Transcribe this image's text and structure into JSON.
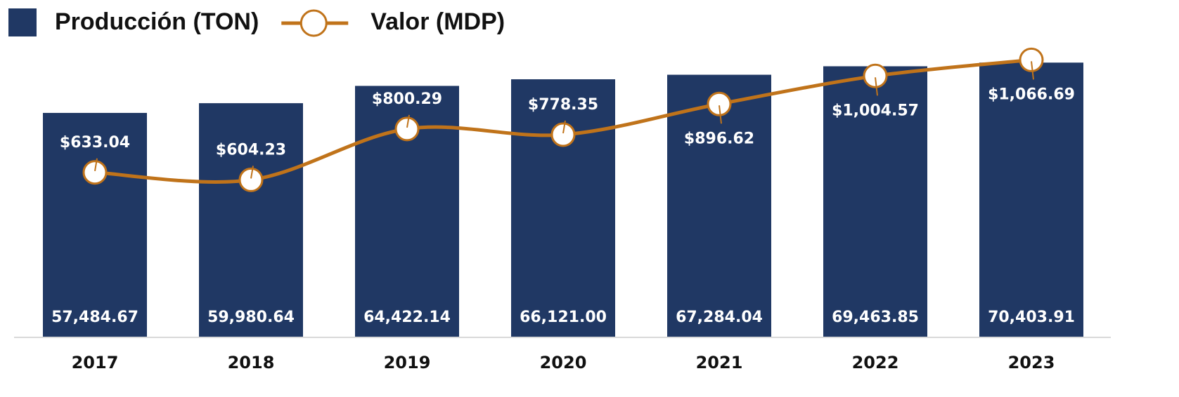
{
  "chart_data": {
    "type": "bar",
    "categories": [
      "2017",
      "2018",
      "2019",
      "2020",
      "2021",
      "2022",
      "2023"
    ],
    "series": [
      {
        "name": "Producción (TON)",
        "type": "bar",
        "color": "#203864",
        "values": [
          57484.67,
          59980.64,
          64422.14,
          66121.0,
          67284.04,
          69463.85,
          70403.91
        ],
        "value_labels": [
          "57,484.67",
          "59,980.64",
          "64,422.14",
          "66,121.00",
          "67,284.04",
          "69,463.85",
          "70,403.91"
        ]
      },
      {
        "name": "Valor (MDP)",
        "type": "line",
        "axis": "y2",
        "color": "#c0731a",
        "values": [
          633.04,
          604.23,
          800.29,
          778.35,
          896.62,
          1004.57,
          1066.69
        ],
        "value_labels": [
          "$633.04",
          "$604.23",
          "$800.29",
          "$778.35",
          "$896.62",
          "$1,004.57",
          "$1,066.69"
        ]
      }
    ],
    "ylim": [
      0,
      80000
    ],
    "y2lim": [
      0,
      1200
    ],
    "legend": "top-left",
    "grid": false
  }
}
